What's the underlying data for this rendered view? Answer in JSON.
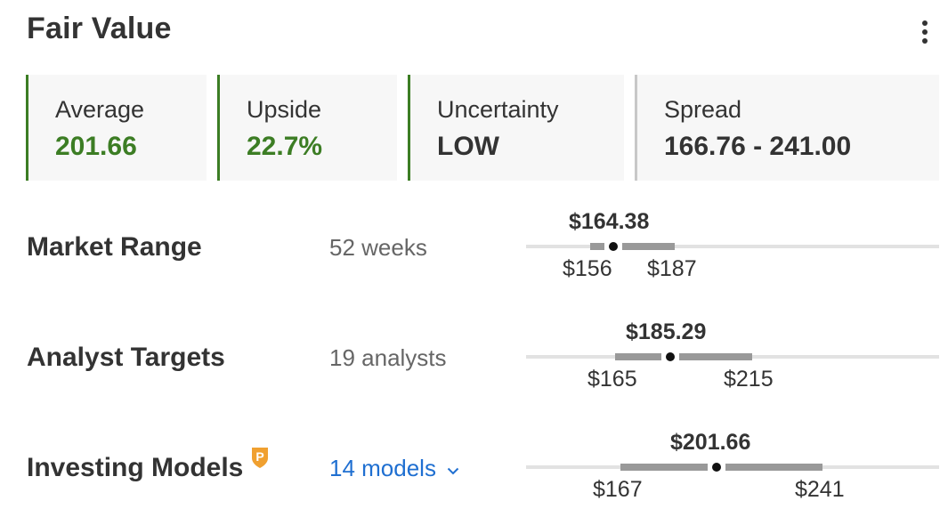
{
  "header": {
    "title": "Fair Value",
    "more_icon": "more-vertical-icon"
  },
  "cards": [
    {
      "label": "Average",
      "value": "201.66",
      "accent": "#3c7d24",
      "value_color": "#3c7d24"
    },
    {
      "label": "Upside",
      "value": "22.7%",
      "accent": "#3c7d24",
      "value_color": "#3c7d24"
    },
    {
      "label": "Uncertainty",
      "value": "LOW",
      "accent": "#3c7d24",
      "value_color": "#333333"
    },
    {
      "label": "Spread",
      "value": "166.76 - 241.00",
      "accent": "#c8c8c8",
      "value_color": "#333333"
    }
  ],
  "rows": [
    {
      "label": "Market Range",
      "sub": "52 weeks",
      "current": "$164.38",
      "low": "$156",
      "high": "$187"
    },
    {
      "label": "Analyst Targets",
      "sub": "19 analysts",
      "current": "$185.29",
      "low": "$165",
      "high": "$215"
    },
    {
      "label": "Investing Models",
      "sub": "14 models",
      "current": "$201.66",
      "low": "$167",
      "high": "$241",
      "pro_icon": "pro-badge-icon",
      "dropdown_icon": "chevron-down-icon"
    }
  ],
  "colors": {
    "positive": "#3c7d24",
    "link": "#1f6fd1",
    "pro_badge": "#f0a030"
  }
}
